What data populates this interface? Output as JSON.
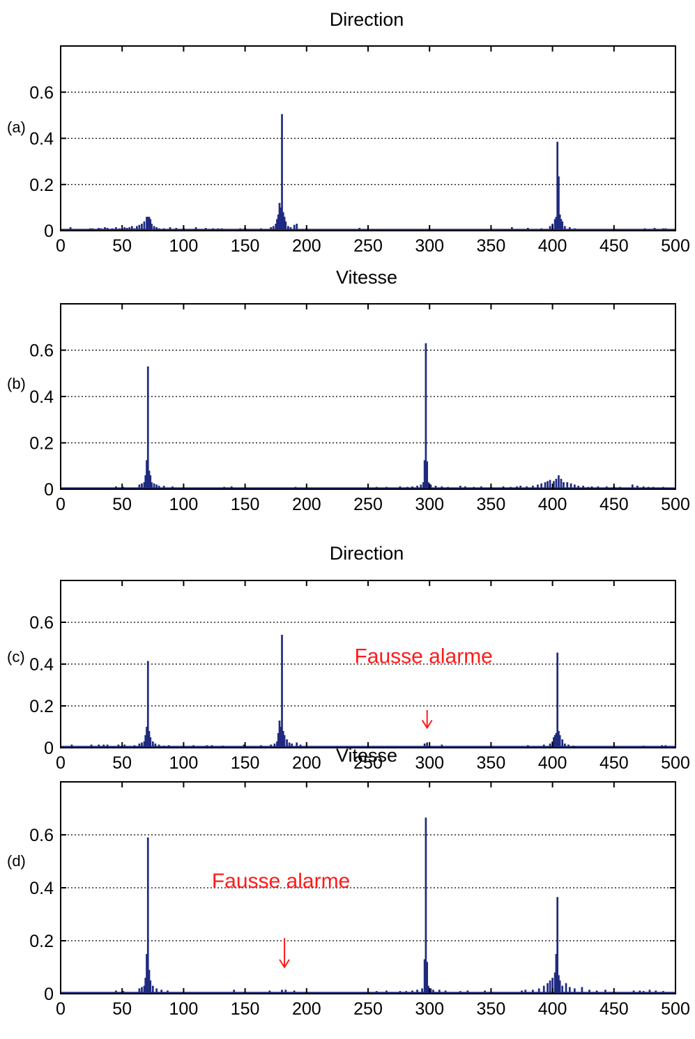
{
  "colors": {
    "bar": "#1f2a80",
    "grid": "#000000",
    "annotation": "#ff1a1a"
  },
  "chart_data": [
    {
      "type": "bar",
      "panel": "(a)",
      "title": "Direction",
      "xlim": [
        0,
        500
      ],
      "ylim": [
        0,
        0.8
      ],
      "xticks": [
        0,
        50,
        100,
        150,
        200,
        250,
        300,
        350,
        400,
        450,
        500
      ],
      "yticks": [
        0,
        0.2,
        0.4,
        0.6
      ],
      "xtick_labels": [
        "0",
        "50",
        "100",
        "150",
        "200",
        "250",
        "300",
        "350",
        "400",
        "450",
        "500"
      ],
      "ytick_labels": [
        "0",
        "0.2",
        "0.4",
        "0.6"
      ],
      "grid": "y-dotted",
      "points": [
        [
          8,
          0.015
        ],
        [
          24,
          0.01
        ],
        [
          26,
          0.01
        ],
        [
          31,
          0.012
        ],
        [
          33,
          0.01
        ],
        [
          36,
          0.015
        ],
        [
          38,
          0.012
        ],
        [
          42,
          0.01
        ],
        [
          45,
          0.015
        ],
        [
          48,
          0.01
        ],
        [
          52,
          0.015
        ],
        [
          54,
          0.012
        ],
        [
          56,
          0.015
        ],
        [
          58,
          0.02
        ],
        [
          60,
          0.01
        ],
        [
          62,
          0.02
        ],
        [
          64,
          0.025
        ],
        [
          66,
          0.03
        ],
        [
          68,
          0.04
        ],
        [
          70,
          0.06
        ],
        [
          71,
          0.06
        ],
        [
          72,
          0.06
        ],
        [
          73,
          0.05
        ],
        [
          74,
          0.03
        ],
        [
          76,
          0.02
        ],
        [
          78,
          0.015
        ],
        [
          80,
          0.01
        ],
        [
          84,
          0.01
        ],
        [
          89,
          0.015
        ],
        [
          94,
          0.012
        ],
        [
          100,
          0.012
        ],
        [
          110,
          0.015
        ],
        [
          118,
          0.012
        ],
        [
          124,
          0.01
        ],
        [
          128,
          0.01
        ],
        [
          131,
          0.01
        ],
        [
          146,
          0.01
        ],
        [
          150,
          0.012
        ],
        [
          163,
          0.01
        ],
        [
          171,
          0.015
        ],
        [
          173,
          0.02
        ],
        [
          175,
          0.03
        ],
        [
          176,
          0.05
        ],
        [
          177,
          0.07
        ],
        [
          178,
          0.12
        ],
        [
          179,
          0.1
        ],
        [
          180,
          0.505
        ],
        [
          181,
          0.08
        ],
        [
          182,
          0.06
        ],
        [
          183,
          0.04
        ],
        [
          185,
          0.02
        ],
        [
          187,
          0.015
        ],
        [
          190,
          0.025
        ],
        [
          192,
          0.03
        ],
        [
          200,
          0.01
        ],
        [
          243,
          0.012
        ],
        [
          367,
          0.015
        ],
        [
          380,
          0.012
        ],
        [
          391,
          0.01
        ],
        [
          398,
          0.02
        ],
        [
          400,
          0.03
        ],
        [
          402,
          0.05
        ],
        [
          403,
          0.06
        ],
        [
          404,
          0.385
        ],
        [
          405,
          0.235
        ],
        [
          406,
          0.07
        ],
        [
          407,
          0.05
        ],
        [
          408,
          0.04
        ],
        [
          410,
          0.02
        ],
        [
          414,
          0.015
        ],
        [
          418,
          0.01
        ],
        [
          475,
          0.01
        ],
        [
          483,
          0.012
        ],
        [
          490,
          0.01
        ],
        [
          492,
          0.01
        ]
      ]
    },
    {
      "type": "bar",
      "panel": "(b)",
      "title": "Vitesse",
      "xlim": [
        0,
        500
      ],
      "ylim": [
        0,
        0.8
      ],
      "xticks": [
        0,
        50,
        100,
        150,
        200,
        250,
        300,
        350,
        400,
        450,
        500
      ],
      "yticks": [
        0,
        0.2,
        0.4,
        0.6
      ],
      "xtick_labels": [
        "0",
        "50",
        "100",
        "150",
        "200",
        "250",
        "300",
        "350",
        "400",
        "450",
        "500"
      ],
      "ytick_labels": [
        "0",
        "0.2",
        "0.4",
        "0.6"
      ],
      "grid": "y-dotted",
      "points": [
        [
          45,
          0.012
        ],
        [
          51,
          0.01
        ],
        [
          64,
          0.02
        ],
        [
          66,
          0.025
        ],
        [
          68,
          0.03
        ],
        [
          69,
          0.06
        ],
        [
          70,
          0.125
        ],
        [
          71,
          0.53
        ],
        [
          72,
          0.08
        ],
        [
          73,
          0.06
        ],
        [
          74,
          0.03
        ],
        [
          76,
          0.025
        ],
        [
          78,
          0.02
        ],
        [
          80,
          0.015
        ],
        [
          84,
          0.015
        ],
        [
          91,
          0.012
        ],
        [
          133,
          0.01
        ],
        [
          139,
          0.012
        ],
        [
          191,
          0.01
        ],
        [
          257,
          0.01
        ],
        [
          265,
          0.01
        ],
        [
          276,
          0.012
        ],
        [
          282,
          0.01
        ],
        [
          286,
          0.012
        ],
        [
          290,
          0.015
        ],
        [
          293,
          0.02
        ],
        [
          295,
          0.03
        ],
        [
          296,
          0.125
        ],
        [
          297,
          0.63
        ],
        [
          298,
          0.12
        ],
        [
          299,
          0.03
        ],
        [
          301,
          0.02
        ],
        [
          305,
          0.015
        ],
        [
          310,
          0.012
        ],
        [
          315,
          0.01
        ],
        [
          325,
          0.015
        ],
        [
          329,
          0.012
        ],
        [
          336,
          0.01
        ],
        [
          342,
          0.012
        ],
        [
          350,
          0.01
        ],
        [
          360,
          0.012
        ],
        [
          366,
          0.01
        ],
        [
          371,
          0.012
        ],
        [
          374,
          0.015
        ],
        [
          379,
          0.012
        ],
        [
          384,
          0.015
        ],
        [
          388,
          0.02
        ],
        [
          391,
          0.025
        ],
        [
          394,
          0.03
        ],
        [
          396,
          0.035
        ],
        [
          398,
          0.04
        ],
        [
          401,
          0.035
        ],
        [
          403,
          0.045
        ],
        [
          405,
          0.06
        ],
        [
          407,
          0.045
        ],
        [
          409,
          0.03
        ],
        [
          412,
          0.03
        ],
        [
          415,
          0.025
        ],
        [
          418,
          0.02
        ],
        [
          421,
          0.015
        ],
        [
          425,
          0.015
        ],
        [
          429,
          0.01
        ],
        [
          432,
          0.012
        ],
        [
          437,
          0.012
        ],
        [
          444,
          0.012
        ],
        [
          450,
          0.012
        ],
        [
          455,
          0.01
        ],
        [
          465,
          0.02
        ],
        [
          469,
          0.015
        ],
        [
          474,
          0.012
        ],
        [
          478,
          0.01
        ],
        [
          482,
          0.01
        ],
        [
          490,
          0.01
        ]
      ]
    },
    {
      "type": "bar",
      "panel": "(c)",
      "title": "Direction",
      "xlim": [
        0,
        500
      ],
      "ylim": [
        0,
        0.8
      ],
      "xticks": [
        0,
        50,
        100,
        150,
        200,
        250,
        300,
        350,
        400,
        450,
        500
      ],
      "yticks": [
        0,
        0.2,
        0.4,
        0.6
      ],
      "xtick_labels": [
        "0",
        "50",
        "100",
        "150",
        "200",
        "250",
        "300",
        "350",
        "400",
        "450",
        "500"
      ],
      "ytick_labels": [
        "0",
        "0.2",
        "0.4",
        "0.6"
      ],
      "grid": "y-dotted",
      "annotation": {
        "text": "Fausse alarme",
        "x": 298,
        "text_y": 0.405,
        "arrow_from": 0.18,
        "arrow_to": 0.095
      },
      "points": [
        [
          9,
          0.015
        ],
        [
          25,
          0.015
        ],
        [
          31,
          0.015
        ],
        [
          35,
          0.015
        ],
        [
          38,
          0.015
        ],
        [
          47,
          0.015
        ],
        [
          52,
          0.015
        ],
        [
          60,
          0.012
        ],
        [
          64,
          0.02
        ],
        [
          66,
          0.025
        ],
        [
          68,
          0.03
        ],
        [
          69,
          0.06
        ],
        [
          70,
          0.1
        ],
        [
          71,
          0.415
        ],
        [
          72,
          0.08
        ],
        [
          73,
          0.05
        ],
        [
          75,
          0.03
        ],
        [
          77,
          0.02
        ],
        [
          80,
          0.015
        ],
        [
          84,
          0.01
        ],
        [
          88,
          0.012
        ],
        [
          100,
          0.01
        ],
        [
          108,
          0.012
        ],
        [
          119,
          0.012
        ],
        [
          123,
          0.012
        ],
        [
          132,
          0.01
        ],
        [
          149,
          0.015
        ],
        [
          163,
          0.012
        ],
        [
          171,
          0.015
        ],
        [
          174,
          0.02
        ],
        [
          176,
          0.03
        ],
        [
          177,
          0.07
        ],
        [
          178,
          0.13
        ],
        [
          179,
          0.1
        ],
        [
          180,
          0.54
        ],
        [
          181,
          0.08
        ],
        [
          182,
          0.06
        ],
        [
          184,
          0.04
        ],
        [
          186,
          0.025
        ],
        [
          188,
          0.02
        ],
        [
          192,
          0.025
        ],
        [
          195,
          0.015
        ],
        [
          296,
          0.02
        ],
        [
          298,
          0.025
        ],
        [
          310,
          0.015
        ],
        [
          380,
          0.012
        ],
        [
          393,
          0.015
        ],
        [
          398,
          0.02
        ],
        [
          400,
          0.03
        ],
        [
          401,
          0.05
        ],
        [
          402,
          0.06
        ],
        [
          403,
          0.07
        ],
        [
          404,
          0.455
        ],
        [
          405,
          0.08
        ],
        [
          406,
          0.06
        ],
        [
          408,
          0.04
        ],
        [
          410,
          0.02
        ],
        [
          413,
          0.015
        ],
        [
          417,
          0.01
        ],
        [
          474,
          0.01
        ],
        [
          489,
          0.012
        ],
        [
          492,
          0.012
        ]
      ]
    },
    {
      "type": "bar",
      "panel": "(d)",
      "title": "Vitesse",
      "xlim": [
        0,
        500
      ],
      "ylim": [
        0,
        0.8
      ],
      "xticks": [
        0,
        50,
        100,
        150,
        200,
        250,
        300,
        350,
        400,
        450,
        500
      ],
      "yticks": [
        0,
        0.2,
        0.4,
        0.6
      ],
      "xtick_labels": [
        "0",
        "50",
        "100",
        "150",
        "200",
        "250",
        "300",
        "350",
        "400",
        "450",
        "500"
      ],
      "ytick_labels": [
        "0",
        "0.2",
        "0.4",
        "0.6"
      ],
      "grid": "y-dotted",
      "annotation": {
        "text": "Fausse alarme",
        "x": 182,
        "text_y": 0.4,
        "arrow_from": 0.21,
        "arrow_to": 0.1
      },
      "points": [
        [
          45,
          0.012
        ],
        [
          51,
          0.01
        ],
        [
          64,
          0.02
        ],
        [
          66,
          0.025
        ],
        [
          68,
          0.03
        ],
        [
          69,
          0.06
        ],
        [
          70,
          0.15
        ],
        [
          71,
          0.59
        ],
        [
          72,
          0.09
        ],
        [
          73,
          0.05
        ],
        [
          75,
          0.03
        ],
        [
          78,
          0.02
        ],
        [
          82,
          0.015
        ],
        [
          87,
          0.012
        ],
        [
          141,
          0.015
        ],
        [
          170,
          0.012
        ],
        [
          180,
          0.015
        ],
        [
          183,
          0.015
        ],
        [
          190,
          0.012
        ],
        [
          257,
          0.01
        ],
        [
          265,
          0.012
        ],
        [
          276,
          0.01
        ],
        [
          281,
          0.01
        ],
        [
          286,
          0.012
        ],
        [
          290,
          0.015
        ],
        [
          294,
          0.02
        ],
        [
          296,
          0.13
        ],
        [
          297,
          0.665
        ],
        [
          298,
          0.12
        ],
        [
          299,
          0.03
        ],
        [
          301,
          0.02
        ],
        [
          303,
          0.015
        ],
        [
          308,
          0.015
        ],
        [
          313,
          0.012
        ],
        [
          325,
          0.01
        ],
        [
          331,
          0.012
        ],
        [
          345,
          0.012
        ],
        [
          375,
          0.012
        ],
        [
          378,
          0.015
        ],
        [
          384,
          0.015
        ],
        [
          389,
          0.02
        ],
        [
          393,
          0.03
        ],
        [
          396,
          0.04
        ],
        [
          398,
          0.05
        ],
        [
          400,
          0.06
        ],
        [
          402,
          0.08
        ],
        [
          403,
          0.15
        ],
        [
          404,
          0.365
        ],
        [
          405,
          0.07
        ],
        [
          406,
          0.05
        ],
        [
          408,
          0.03
        ],
        [
          411,
          0.04
        ],
        [
          414,
          0.025
        ],
        [
          418,
          0.02
        ],
        [
          424,
          0.025
        ],
        [
          430,
          0.015
        ],
        [
          436,
          0.012
        ],
        [
          443,
          0.015
        ],
        [
          466,
          0.012
        ],
        [
          471,
          0.012
        ],
        [
          474,
          0.01
        ],
        [
          479,
          0.015
        ],
        [
          484,
          0.012
        ],
        [
          490,
          0.01
        ]
      ]
    }
  ]
}
